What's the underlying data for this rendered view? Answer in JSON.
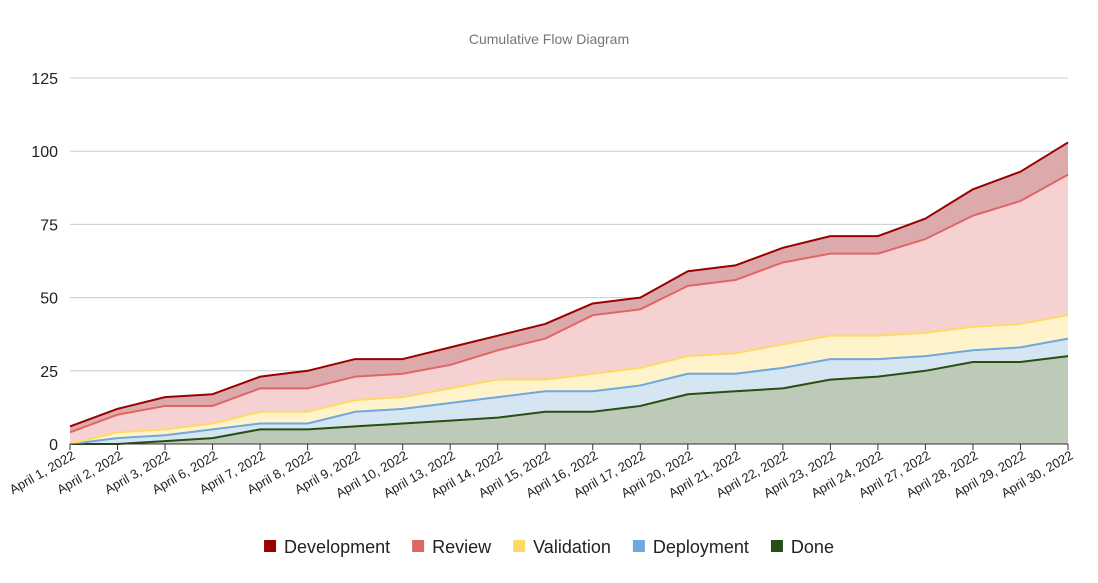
{
  "chart_data": {
    "type": "area",
    "stacked": true,
    "title": "Cumulative Flow Diagram",
    "xlabel": "",
    "ylabel": "",
    "ylim": [
      0,
      125
    ],
    "yticks": [
      "0",
      "25",
      "50",
      "75",
      "100",
      "125"
    ],
    "grid": true,
    "legend_position": "bottom",
    "categories": [
      "April 1, 2022",
      "April 2, 2022",
      "April 3, 2022",
      "April 6, 2022",
      "April 7, 2022",
      "April 8, 2022",
      "April 9, 2022",
      "April 10, 2022",
      "April 13, 2022",
      "April 14, 2022",
      "April 15, 2022",
      "April 16, 2022",
      "April 17, 2022",
      "April 20, 2022",
      "April 21, 2022",
      "April 22, 2022",
      "April 23, 2022",
      "April 24, 2022",
      "April 27, 2022",
      "April 28, 2022",
      "April 29, 2022",
      "April 30, 2022"
    ],
    "series": [
      {
        "name": "Done",
        "line_color": "#274e13",
        "fill_color": "#bccab7",
        "values": [
          0,
          0,
          1,
          2,
          5,
          5,
          6,
          7,
          8,
          9,
          11,
          11,
          13,
          17,
          18,
          19,
          22,
          23,
          25,
          28,
          28,
          30
        ]
      },
      {
        "name": "Deployment",
        "line_color": "#6fa8dc",
        "fill_color": "#d6e5f2",
        "values": [
          0,
          2,
          2,
          3,
          2,
          2,
          5,
          5,
          6,
          7,
          7,
          7,
          7,
          7,
          6,
          7,
          7,
          6,
          5,
          4,
          5,
          6
        ]
      },
      {
        "name": "Validation",
        "line_color": "#ffd966",
        "fill_color": "#fff3cc",
        "values": [
          0,
          2,
          2,
          2,
          4,
          4,
          4,
          4,
          5,
          6,
          4,
          6,
          6,
          6,
          7,
          8,
          8,
          8,
          8,
          8,
          8,
          8
        ]
      },
      {
        "name": "Review",
        "line_color": "#e06666",
        "fill_color": "#f5d1d1",
        "values": [
          4,
          6,
          8,
          6,
          8,
          8,
          8,
          8,
          8,
          10,
          14,
          20,
          20,
          24,
          25,
          28,
          28,
          28,
          32,
          38,
          42,
          48
        ]
      },
      {
        "name": "Development",
        "line_color": "#990000",
        "fill_color": "#dcaaaa",
        "values": [
          2,
          2,
          3,
          4,
          4,
          6,
          6,
          5,
          6,
          5,
          5,
          4,
          4,
          5,
          5,
          5,
          6,
          6,
          7,
          9,
          10,
          11
        ]
      }
    ],
    "legend_order": [
      "Development",
      "Review",
      "Validation",
      "Deployment",
      "Done"
    ]
  }
}
